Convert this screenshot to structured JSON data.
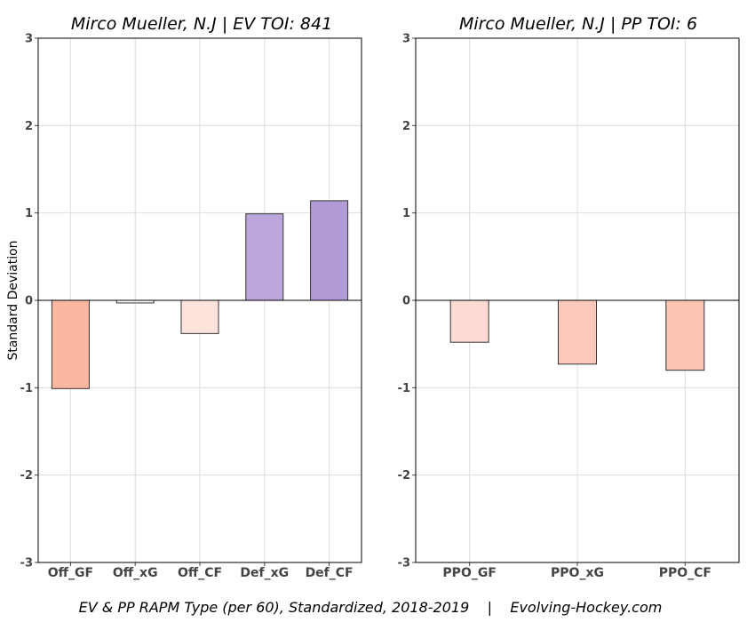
{
  "ylabel": "Standard Deviation",
  "footer": "EV & PP RAPM Type (per 60), Standardized, 2018-2019    |    Evolving-Hockey.com",
  "chart_data": [
    {
      "type": "bar",
      "title": "Mirco Mueller, N.J  |  EV TOI: 841",
      "categories": [
        "Off_GF",
        "Off_xG",
        "Off_CF",
        "Def_xG",
        "Def_CF"
      ],
      "values": [
        -1.01,
        -0.03,
        -0.38,
        0.99,
        1.14
      ],
      "colors": [
        "#fcb7a1",
        "#ffffff",
        "#fde3dc",
        "#bba7dc",
        "#b09bd5"
      ],
      "ylabel": "Standard Deviation",
      "ylim": [
        -3,
        3
      ],
      "yticks": [
        3,
        2,
        1,
        0,
        -1,
        -2,
        -3
      ],
      "grid": true
    },
    {
      "type": "bar",
      "title": "Mirco Mueller, N.J  |  PP TOI: 6",
      "categories": [
        "PPO_GF",
        "PPO_xG",
        "PPO_CF"
      ],
      "values": [
        -0.48,
        -0.73,
        -0.8
      ],
      "colors": [
        "#fddbd2",
        "#fdc9ba",
        "#fdc3b3"
      ],
      "ylim": [
        -3,
        3
      ],
      "yticks": [
        3,
        2,
        1,
        0,
        -1,
        -2,
        -3
      ],
      "grid": true
    }
  ]
}
